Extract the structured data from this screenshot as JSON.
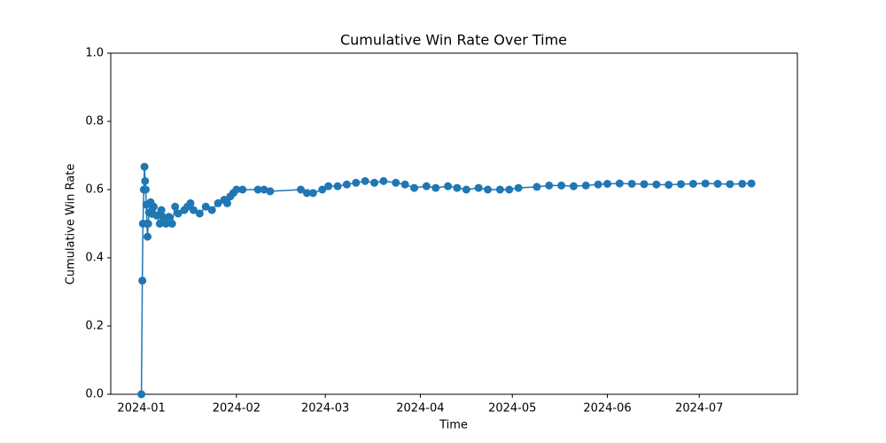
{
  "chart_data": {
    "type": "line",
    "title": "Cumulative Win Rate Over Time",
    "xlabel": "Time",
    "ylabel": "Cumulative Win Rate",
    "color": "#1f77b4",
    "markers": true,
    "x": [
      0,
      0.3,
      0.5,
      0.8,
      1,
      1.2,
      1.4,
      1.6,
      1.8,
      2,
      2.2,
      2.5,
      3,
      3.5,
      4,
      5,
      6,
      6.5,
      7,
      8,
      9,
      10,
      11,
      12,
      14,
      15,
      16,
      17,
      19,
      21,
      23,
      25,
      27,
      28,
      29,
      30,
      31,
      33,
      38,
      40,
      42,
      52,
      54,
      56,
      59,
      61,
      64,
      67,
      70,
      73,
      76,
      79,
      83,
      86,
      89,
      93,
      96,
      100,
      103,
      106,
      110,
      113,
      117,
      120,
      123,
      129,
      133,
      137,
      141,
      145,
      149,
      152,
      156,
      160,
      164,
      168,
      172,
      176,
      180,
      184,
      188,
      192,
      196,
      199
    ],
    "values": [
      0,
      0.333,
      0.5,
      0.6,
      0.667,
      0.625,
      0.6,
      0.556,
      0.5,
      0.462,
      0.5,
      0.533,
      0.563,
      0.529,
      0.55,
      0.524,
      0.5,
      0.54,
      0.52,
      0.5,
      0.52,
      0.5,
      0.55,
      0.53,
      0.54,
      0.55,
      0.56,
      0.54,
      0.53,
      0.55,
      0.54,
      0.56,
      0.57,
      0.56,
      0.58,
      0.59,
      0.6,
      0.6,
      0.6,
      0.6,
      0.595,
      0.6,
      0.59,
      0.59,
      0.6,
      0.61,
      0.61,
      0.615,
      0.62,
      0.625,
      0.62,
      0.625,
      0.62,
      0.615,
      0.605,
      0.61,
      0.605,
      0.61,
      0.605,
      0.6,
      0.605,
      0.6,
      0.6,
      0.6,
      0.605,
      0.608,
      0.612,
      0.612,
      0.61,
      0.612,
      0.615,
      0.617,
      0.618,
      0.617,
      0.616,
      0.615,
      0.614,
      0.616,
      0.617,
      0.618,
      0.617,
      0.616,
      0.617,
      0.618
    ],
    "xlim": [
      -10,
      214
    ],
    "xticks": [
      {
        "value": 0,
        "label": "2024-01"
      },
      {
        "value": 31,
        "label": "2024-02"
      },
      {
        "value": 60,
        "label": "2024-03"
      },
      {
        "value": 91,
        "label": "2024-04"
      },
      {
        "value": 121,
        "label": "2024-05"
      },
      {
        "value": 152,
        "label": "2024-06"
      },
      {
        "value": 182,
        "label": "2024-07"
      }
    ],
    "ylim": [
      0,
      1
    ],
    "yticks": [
      {
        "value": 0,
        "label": "0.0"
      },
      0.2,
      0.4,
      0.6,
      0.8,
      {
        "value": 1,
        "label": "1.0"
      }
    ]
  }
}
